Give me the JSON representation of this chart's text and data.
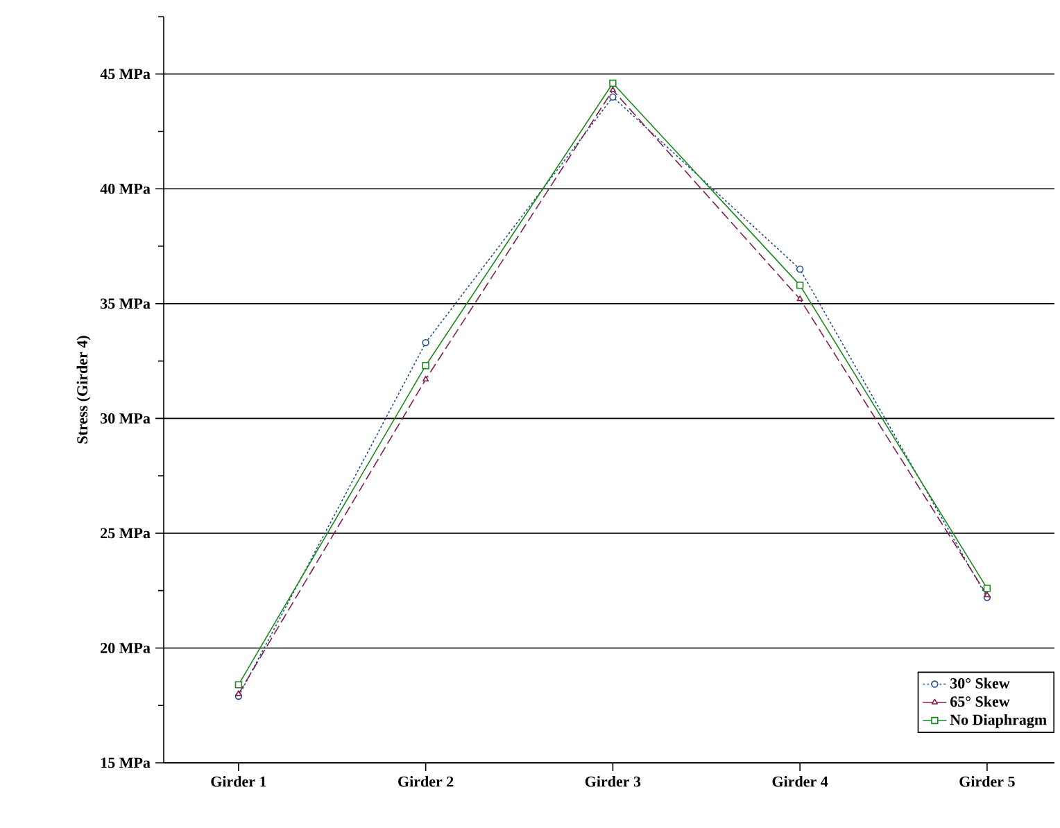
{
  "chart_data": {
    "type": "line",
    "ylabel": "Stress (Girder 4)",
    "categories": [
      "Girder 1",
      "Girder 2",
      "Girder 3",
      "Girder 4",
      "Girder 5"
    ],
    "series": [
      {
        "name": "30° Skew",
        "color": "#1f4e8c",
        "marker": "circle",
        "line_style": "dotted",
        "values": [
          17.9,
          33.3,
          44.0,
          36.5,
          22.2
        ]
      },
      {
        "name": "65° Skew",
        "color": "#7f1f4f",
        "marker": "triangle",
        "line_style": "dashed",
        "values": [
          18.0,
          31.7,
          44.3,
          35.2,
          22.3
        ]
      },
      {
        "name": "No Diaphragm",
        "color": "#1a8a1a",
        "marker": "square",
        "line_style": "solid",
        "values": [
          18.4,
          32.3,
          44.6,
          35.8,
          22.6
        ]
      }
    ],
    "ylim": [
      15,
      47.5
    ],
    "yticks": [
      {
        "value": 15,
        "label": "15 MPa"
      },
      {
        "value": 17.5,
        "label": null
      },
      {
        "value": 20,
        "label": "20 MPa"
      },
      {
        "value": 22.5,
        "label": null
      },
      {
        "value": 25,
        "label": "25 MPa"
      },
      {
        "value": 27.5,
        "label": null
      },
      {
        "value": 30,
        "label": "30 MPa"
      },
      {
        "value": 32.5,
        "label": null
      },
      {
        "value": 35,
        "label": "35 MPa"
      },
      {
        "value": 37.5,
        "label": null
      },
      {
        "value": 40,
        "label": "40 MPa"
      },
      {
        "value": 42.5,
        "label": null
      },
      {
        "value": 45,
        "label": "45 MPa"
      },
      {
        "value": 47.5,
        "label": null
      }
    ],
    "grid": "y",
    "legend": "bottom right"
  }
}
